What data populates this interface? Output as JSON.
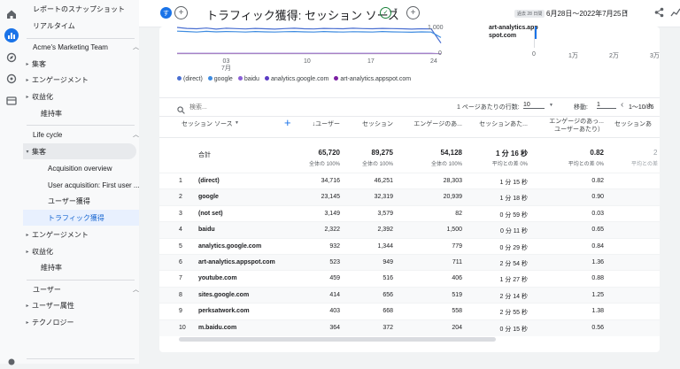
{
  "sidebar": {
    "top_items": [
      "レポートのスナップショット",
      "リアルタイム"
    ],
    "section1": {
      "title": "Acme's Marketing Team",
      "items": [
        "集客",
        "エンゲージメント",
        "収益化",
        "維持率"
      ]
    },
    "section2": {
      "title": "Life cycle",
      "group": "集客",
      "subitems": [
        "Acquisition overview",
        "User acquisition: First user ...",
        "ユーザー獲得",
        "トラフィック獲得"
      ],
      "items": [
        "エンゲージメント",
        "収益化",
        "維持率"
      ]
    },
    "section3": {
      "title": "ユーザー",
      "items": [
        "ユーザー属性",
        "テクノロジー"
      ]
    }
  },
  "header": {
    "badge": "す",
    "add_symbol": "+",
    "title": "トラフィック獲得: セッション ソース",
    "date_prefix": "過去 28 日間",
    "date_range": "6月28日～2022年7月25日"
  },
  "chart": {
    "x_ticks": [
      "03\n7月",
      "10",
      "17",
      "24"
    ],
    "y_ticks": [
      "1,000",
      "0"
    ],
    "right_ticks": [
      "0",
      "1万",
      "2万",
      "3万"
    ],
    "callout": "art-analytics.app\nspot.com",
    "legend": [
      "(direct)",
      "google",
      "baidu",
      "analytics.google.com",
      "art-analytics.appspot.com"
    ],
    "legend_colors": [
      "#4a6fd1",
      "#3d8be0",
      "#8a5fd6",
      "#5b3cc4",
      "#7b1fa2"
    ]
  },
  "chart_data": {
    "type": "line",
    "x_ticks": [
      "03 7月",
      "10",
      "17",
      "24"
    ],
    "y_ticks": [
      "1,000",
      "0"
    ],
    "series": [
      {
        "name": "(direct)",
        "values": [
          1450,
          1400,
          1380,
          1420,
          1360,
          1410,
          1390,
          1370,
          1400,
          1380,
          1360,
          1390,
          1410,
          1380,
          1370,
          1400,
          1390,
          1380,
          1410,
          1390,
          1380,
          1400,
          1390,
          1380,
          1360,
          1380,
          1370,
          600
        ]
      },
      {
        "name": "google",
        "values": [
          1250,
          1230,
          1200,
          1240,
          1210,
          1230,
          1220,
          1200,
          1230,
          1210,
          1200,
          1220,
          1230,
          1210,
          1200,
          1230,
          1210,
          1200,
          1220,
          1210,
          1200,
          1230,
          1210,
          1200,
          1190,
          1210,
          1200,
          900
        ]
      },
      {
        "name": "baidu",
        "values": [
          15,
          14,
          16,
          15,
          13,
          14,
          15,
          16,
          14,
          15,
          13,
          14,
          16,
          15,
          14,
          13,
          15,
          16,
          14,
          15,
          13,
          14,
          15,
          16,
          14,
          15,
          14,
          10
        ]
      },
      {
        "name": "analytics.google.com",
        "values": [
          40,
          38,
          36,
          39,
          37,
          35,
          38,
          36,
          37,
          39,
          36,
          35,
          38,
          37,
          36,
          39,
          37,
          35,
          38,
          36,
          37,
          39,
          36,
          35,
          38,
          37,
          36,
          20
        ]
      },
      {
        "name": "art-analytics.appspot.com",
        "values": [
          22,
          20,
          21,
          23,
          19,
          20,
          22,
          21,
          20,
          19,
          21,
          22,
          20,
          21,
          19,
          20,
          22,
          21,
          20,
          19,
          21,
          22,
          20,
          21,
          19,
          20,
          21,
          10
        ]
      }
    ]
  },
  "table_controls": {
    "search_placeholder": "検索...",
    "rows_label": "1 ページあたりの行数:",
    "rows_value": "10",
    "goto_label": "移動:",
    "goto_value": "1",
    "pager": "1～10/86"
  },
  "table": {
    "dim_header": "セッション ソース",
    "columns": [
      "↓ユーザー",
      "セッション",
      "エンゲージのあ...",
      "セッションあた...",
      "エンゲージのあっ...\nユーザーあたり）",
      "セッションあ"
    ],
    "total_label": "合計",
    "totals": [
      "65,720",
      "89,275",
      "54,128",
      "1 分 16 秒",
      "0.82",
      "2"
    ],
    "totals_sub": [
      "全体の 100%",
      "全体の 100%",
      "全体の 100%",
      "平均との差 0%",
      "平均との差 0%",
      "平均との差"
    ],
    "rows": [
      {
        "n": "1",
        "source": "(direct)",
        "users": "34,716",
        "sessions": "46,251",
        "engaged": "28,303",
        "avg": "1 分 15 秒",
        "per_user": "0.82"
      },
      {
        "n": "2",
        "source": "google",
        "users": "23,145",
        "sessions": "32,319",
        "engaged": "20,939",
        "avg": "1 分 18 秒",
        "per_user": "0.90"
      },
      {
        "n": "3",
        "source": "(not set)",
        "users": "3,149",
        "sessions": "3,579",
        "engaged": "82",
        "avg": "0 分 59 秒",
        "per_user": "0.03"
      },
      {
        "n": "4",
        "source": "baidu",
        "users": "2,322",
        "sessions": "2,392",
        "engaged": "1,500",
        "avg": "0 分 11 秒",
        "per_user": "0.65"
      },
      {
        "n": "5",
        "source": "analytics.google.com",
        "users": "932",
        "sessions": "1,344",
        "engaged": "779",
        "avg": "0 分 29 秒",
        "per_user": "0.84"
      },
      {
        "n": "6",
        "source": "art-analytics.appspot.com",
        "users": "523",
        "sessions": "949",
        "engaged": "711",
        "avg": "2 分 54 秒",
        "per_user": "1.36"
      },
      {
        "n": "7",
        "source": "youtube.com",
        "users": "459",
        "sessions": "516",
        "engaged": "406",
        "avg": "1 分 27 秒",
        "per_user": "0.88"
      },
      {
        "n": "8",
        "source": "sites.google.com",
        "users": "414",
        "sessions": "656",
        "engaged": "519",
        "avg": "2 分 14 秒",
        "per_user": "1.25"
      },
      {
        "n": "9",
        "source": "perksatwork.com",
        "users": "403",
        "sessions": "668",
        "engaged": "558",
        "avg": "2 分 55 秒",
        "per_user": "1.38"
      },
      {
        "n": "10",
        "source": "m.baidu.com",
        "users": "364",
        "sessions": "372",
        "engaged": "204",
        "avg": "0 分 15 秒",
        "per_user": "0.56"
      }
    ]
  }
}
